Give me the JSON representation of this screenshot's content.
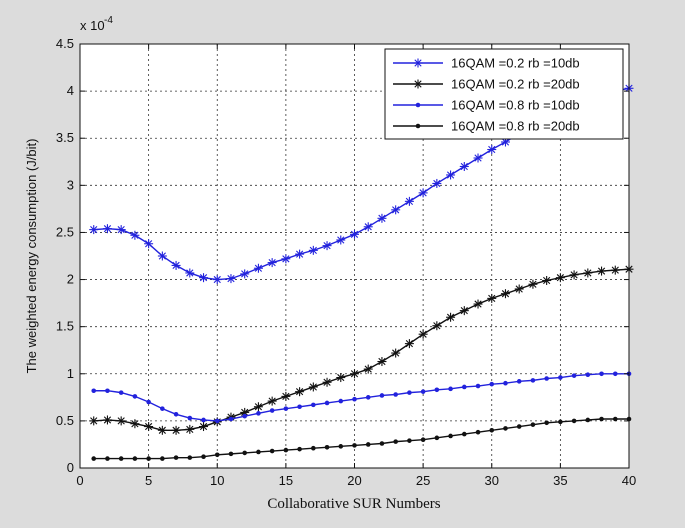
{
  "chart_data": {
    "type": "line",
    "title": "",
    "xlabel": "Collaborative SUR Numbers",
    "ylabel": "The weighted energy consumption (J/bit)",
    "xlim": [
      0,
      40
    ],
    "ylim": [
      0,
      4.5
    ],
    "y_multiplier_label": "x 10",
    "y_multiplier_exponent": "-4",
    "xticks": [
      0,
      5,
      10,
      15,
      20,
      25,
      30,
      35,
      40
    ],
    "yticks": [
      0,
      0.5,
      1,
      1.5,
      2,
      2.5,
      3,
      3.5,
      4,
      4.5
    ],
    "xtick_labels": [
      "0",
      "5",
      "10",
      "15",
      "20",
      "25",
      "30",
      "35",
      "40"
    ],
    "ytick_labels": [
      "0",
      "0.5",
      "1",
      "1.5",
      "2",
      "2.5",
      "3",
      "3.5",
      "4",
      "4.5"
    ],
    "grid": true,
    "legend_position": "top-right",
    "x": [
      1,
      2,
      3,
      4,
      5,
      6,
      7,
      8,
      9,
      10,
      11,
      12,
      13,
      14,
      15,
      16,
      17,
      18,
      19,
      20,
      21,
      22,
      23,
      24,
      25,
      26,
      27,
      28,
      29,
      30,
      31,
      32,
      33,
      34,
      35,
      36,
      37,
      38,
      39,
      40
    ],
    "series": [
      {
        "name": "16QAM =0.2 rb =10db",
        "color": "#2222dd",
        "marker": "star",
        "values": [
          2.53,
          2.54,
          2.53,
          2.47,
          2.38,
          2.25,
          2.15,
          2.07,
          2.02,
          2.0,
          2.01,
          2.06,
          2.12,
          2.18,
          2.22,
          2.27,
          2.31,
          2.36,
          2.42,
          2.48,
          2.56,
          2.65,
          2.74,
          2.83,
          2.92,
          3.02,
          3.11,
          3.2,
          3.29,
          3.38,
          3.46,
          3.55,
          3.63,
          3.71,
          3.78,
          3.85,
          3.91,
          3.96,
          4.0,
          4.03
        ]
      },
      {
        "name": "16QAM =0.2 rb =20db",
        "color": "#111111",
        "marker": "star",
        "values": [
          0.5,
          0.51,
          0.5,
          0.47,
          0.44,
          0.4,
          0.4,
          0.41,
          0.44,
          0.49,
          0.54,
          0.59,
          0.65,
          0.71,
          0.76,
          0.81,
          0.86,
          0.91,
          0.96,
          1.0,
          1.05,
          1.13,
          1.22,
          1.32,
          1.42,
          1.51,
          1.6,
          1.67,
          1.74,
          1.8,
          1.85,
          1.9,
          1.95,
          1.99,
          2.02,
          2.05,
          2.07,
          2.09,
          2.1,
          2.11
        ]
      },
      {
        "name": "16QAM =0.8 rb =10db",
        "color": "#2222dd",
        "marker": "dot",
        "values": [
          0.82,
          0.82,
          0.8,
          0.76,
          0.7,
          0.63,
          0.57,
          0.53,
          0.51,
          0.5,
          0.52,
          0.55,
          0.58,
          0.61,
          0.63,
          0.65,
          0.67,
          0.69,
          0.71,
          0.73,
          0.75,
          0.77,
          0.78,
          0.8,
          0.81,
          0.83,
          0.84,
          0.86,
          0.87,
          0.89,
          0.9,
          0.92,
          0.93,
          0.95,
          0.96,
          0.98,
          0.99,
          1.0,
          1.0,
          1.0
        ]
      },
      {
        "name": "16QAM =0.8 rb =20db",
        "color": "#111111",
        "marker": "dot",
        "values": [
          0.1,
          0.1,
          0.1,
          0.1,
          0.1,
          0.1,
          0.11,
          0.11,
          0.12,
          0.14,
          0.15,
          0.16,
          0.17,
          0.18,
          0.19,
          0.2,
          0.21,
          0.22,
          0.23,
          0.24,
          0.25,
          0.26,
          0.28,
          0.29,
          0.3,
          0.32,
          0.34,
          0.36,
          0.38,
          0.4,
          0.42,
          0.44,
          0.46,
          0.48,
          0.49,
          0.5,
          0.51,
          0.52,
          0.52,
          0.52
        ]
      }
    ]
  }
}
